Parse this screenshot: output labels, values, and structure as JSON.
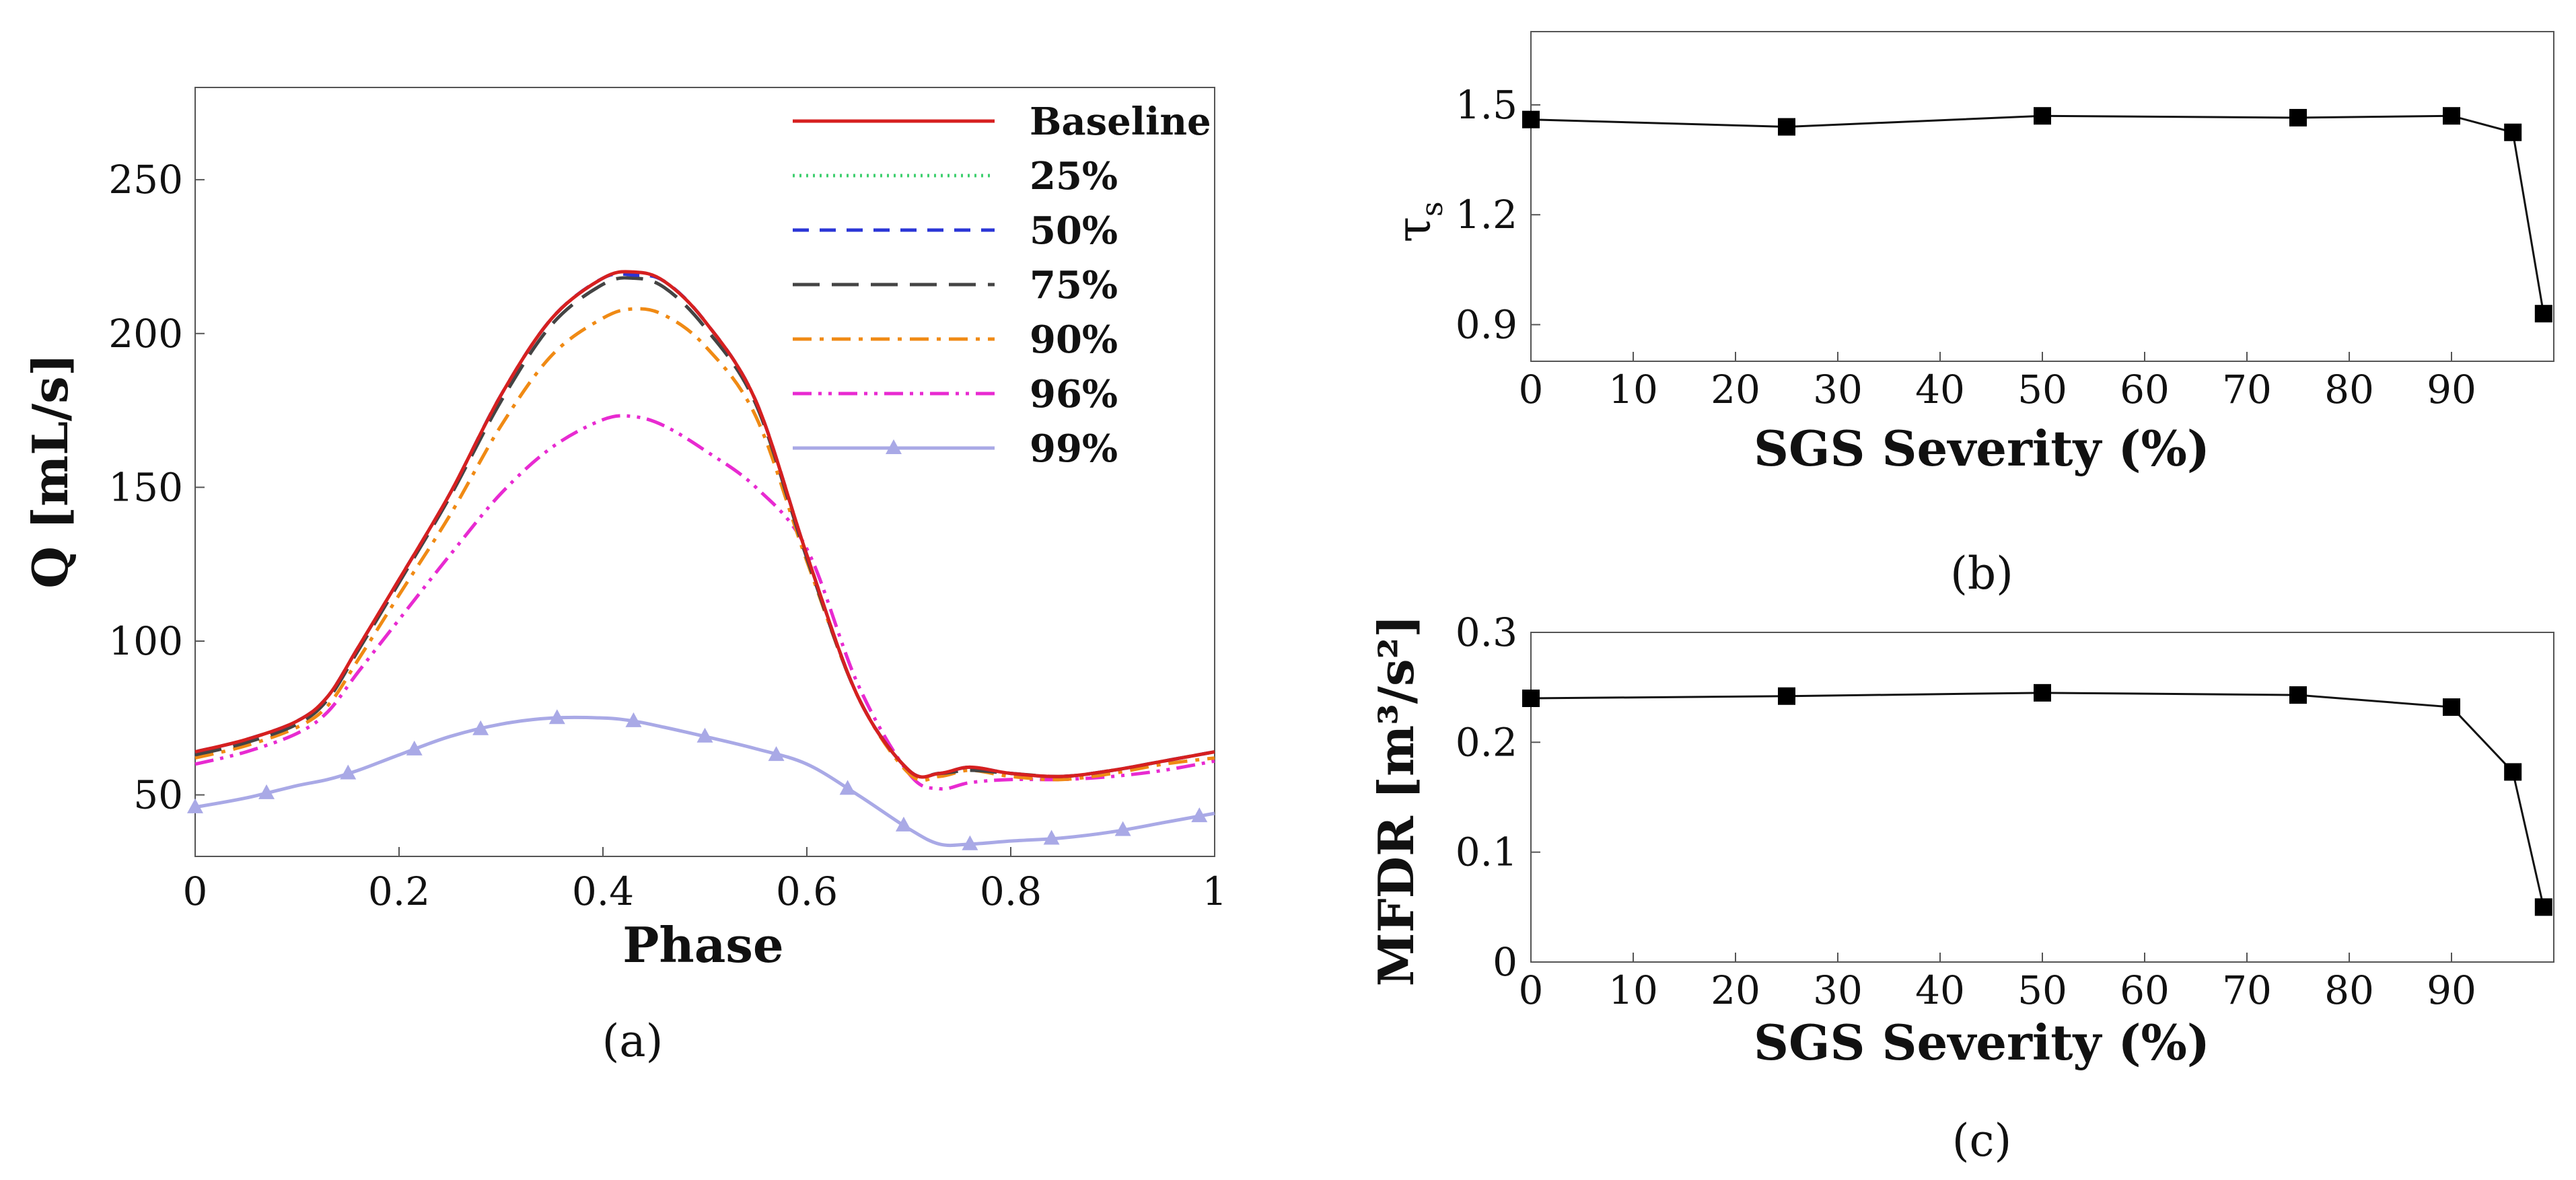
{
  "chart_data": [
    {
      "id": "a",
      "type": "line",
      "panel_label": "(a)",
      "title": "",
      "xlabel": "Phase",
      "ylabel": "Q [mL/s]",
      "xlim": [
        0,
        1
      ],
      "ylim": [
        30,
        280
      ],
      "xticks": [
        0,
        0.2,
        0.4,
        0.6,
        0.8,
        1
      ],
      "xtick_labels": [
        "0",
        "0.2",
        "0.4",
        "0.6",
        "0.8",
        "1"
      ],
      "yticks": [
        50,
        100,
        150,
        200,
        250
      ],
      "ytick_labels": [
        "50",
        "100",
        "150",
        "200",
        "250"
      ],
      "legend_position": "top-right",
      "x": [
        0,
        0.05,
        0.1,
        0.13,
        0.16,
        0.2,
        0.25,
        0.3,
        0.35,
        0.4,
        0.43,
        0.46,
        0.5,
        0.55,
        0.6,
        0.65,
        0.7,
        0.73,
        0.76,
        0.8,
        0.85,
        0.9,
        0.95,
        1.0
      ],
      "series": [
        {
          "name": "Baseline",
          "color": "#d62020",
          "dash": "solid",
          "values": [
            64,
            68,
            74,
            82,
            98,
            120,
            148,
            180,
            205,
            218,
            220,
            217,
            204,
            178,
            128,
            82,
            58,
            57,
            59,
            57,
            56,
            58,
            61,
            64
          ]
        },
        {
          "name": "25%",
          "color": "#3ecf6e",
          "dash": "dotted",
          "values": [
            64,
            68,
            74,
            82,
            98,
            120,
            148,
            180,
            205,
            218,
            220,
            217,
            204,
            178,
            128,
            82,
            58,
            57,
            59,
            57,
            56,
            58,
            61,
            64
          ]
        },
        {
          "name": "50%",
          "color": "#2a35d6",
          "dash": "dashed",
          "values": [
            64,
            68,
            74,
            82,
            98,
            120,
            148,
            180,
            205,
            218,
            219,
            217,
            204,
            178,
            128,
            82,
            58,
            57,
            59,
            57,
            56,
            58,
            61,
            64
          ]
        },
        {
          "name": "75%",
          "color": "#444444",
          "dash": "longdash",
          "values": [
            63,
            67,
            73,
            81,
            97,
            119,
            147,
            178,
            203,
            216,
            218,
            215,
            202,
            177,
            127,
            82,
            58,
            57,
            58,
            57,
            56,
            58,
            61,
            64
          ]
        },
        {
          "name": "90%",
          "color": "#f08a14",
          "dash": "dashdot",
          "values": [
            62,
            66,
            72,
            79,
            94,
            115,
            141,
            170,
            193,
            205,
            208,
            206,
            196,
            173,
            126,
            82,
            57,
            56,
            58,
            56,
            55,
            57,
            60,
            62
          ]
        },
        {
          "name": "96%",
          "color": "#e82ad1",
          "dash": "dashdotdot",
          "values": [
            60,
            64,
            70,
            77,
            90,
            107,
            128,
            148,
            163,
            172,
            173,
            170,
            162,
            150,
            130,
            86,
            57,
            52,
            54,
            55,
            55,
            56,
            58,
            61
          ]
        },
        {
          "name": "99%",
          "color": "#a9a9e6",
          "dash": "solid-marker",
          "values": [
            46,
            49,
            53,
            55,
            58,
            63,
            69,
            73,
            75,
            75,
            74,
            72,
            69,
            65,
            60,
            50,
            39,
            34,
            34,
            35,
            36,
            38,
            41,
            44
          ]
        }
      ],
      "marker_x_99": [
        0,
        0.07,
        0.15,
        0.215,
        0.28,
        0.355,
        0.43,
        0.5,
        0.57,
        0.64,
        0.695,
        0.76,
        0.84,
        0.91,
        0.985
      ]
    },
    {
      "id": "b",
      "type": "line",
      "panel_label": "(b)",
      "xlabel": "SGS Severity (%)",
      "ylabel": "τ",
      "ylabel_sub": "s",
      "xlim": [
        0,
        100
      ],
      "ylim": [
        0.8,
        1.7
      ],
      "xticks": [
        0,
        10,
        20,
        30,
        40,
        50,
        60,
        70,
        80,
        90
      ],
      "xtick_labels": [
        "0",
        "10",
        "20",
        "30",
        "40",
        "50",
        "60",
        "70",
        "80",
        "90"
      ],
      "yticks": [
        0.9,
        1.2,
        1.5
      ],
      "ytick_labels": [
        "0.9",
        "1.2",
        "1.5"
      ],
      "x": [
        0,
        25,
        50,
        75,
        90,
        96,
        99
      ],
      "values": [
        1.46,
        1.44,
        1.47,
        1.465,
        1.47,
        1.425,
        0.93
      ]
    },
    {
      "id": "c",
      "type": "line",
      "panel_label": "(c)",
      "xlabel": "SGS Severity (%)",
      "ylabel": "MFDR [m³/s²]",
      "xlim": [
        0,
        100
      ],
      "ylim": [
        0,
        0.3
      ],
      "xticks": [
        0,
        10,
        20,
        30,
        40,
        50,
        60,
        70,
        80,
        90
      ],
      "xtick_labels": [
        "0",
        "10",
        "20",
        "30",
        "40",
        "50",
        "60",
        "70",
        "80",
        "90"
      ],
      "yticks": [
        0,
        0.1,
        0.2,
        0.3
      ],
      "ytick_labels": [
        "0",
        "0.1",
        "0.2",
        "0.3"
      ],
      "x": [
        0,
        25,
        50,
        75,
        90,
        96,
        99
      ],
      "values": [
        0.24,
        0.242,
        0.245,
        0.243,
        0.232,
        0.173,
        0.05
      ]
    }
  ]
}
